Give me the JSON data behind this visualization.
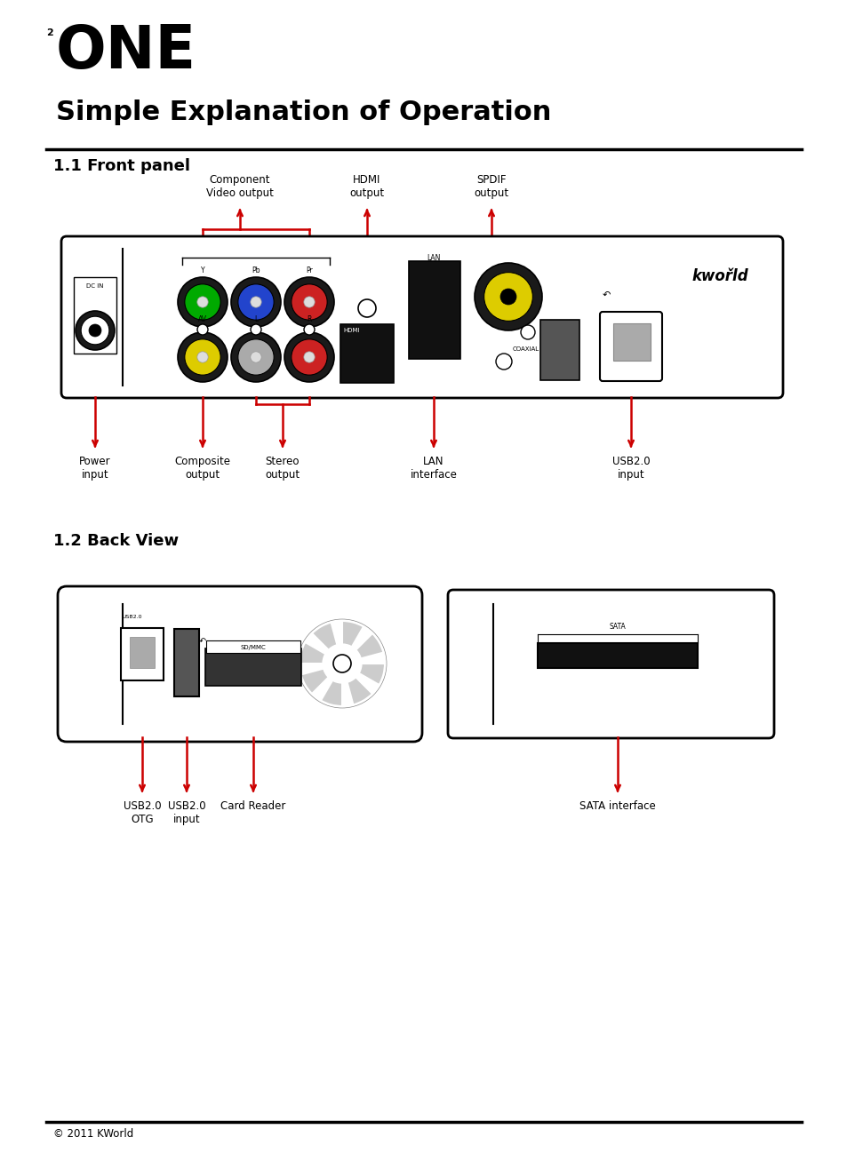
{
  "bg_color": "#ffffff",
  "text_color": "#000000",
  "red_color": "#cc0000",
  "page_number": "2",
  "chapter_title": "ONE",
  "subtitle": "Simple Explanation of Operation",
  "section1": "1.1 Front panel",
  "section2": "1.2 Back View",
  "footer": "© 2011 KWorld"
}
